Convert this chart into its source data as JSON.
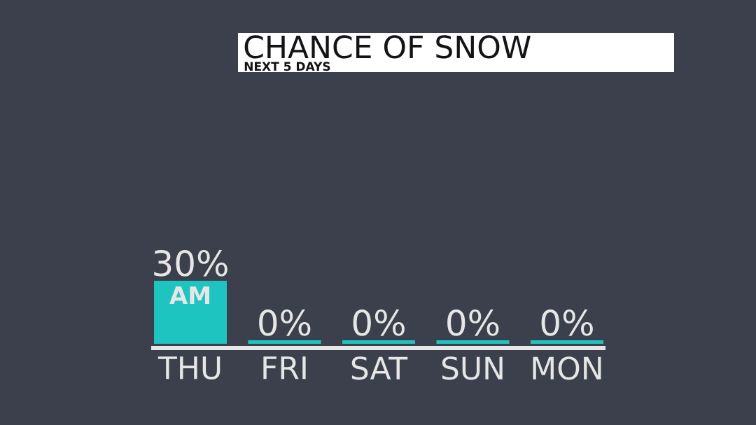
{
  "chart_data": {
    "type": "bar",
    "title": "CHANCE OF SNOW",
    "subtitle": "NEXT 5 DAYS",
    "categories": [
      "THU",
      "FRI",
      "SAT",
      "SUN",
      "MON"
    ],
    "values": [
      30,
      0,
      0,
      0,
      0
    ],
    "color": "#1ec4c0",
    "value_labels": [
      "30%",
      "0%",
      "0%",
      "0%",
      "0%"
    ],
    "annotations": [
      {
        "text": "AM",
        "x": "THU",
        "y": 30
      }
    ]
  }
}
